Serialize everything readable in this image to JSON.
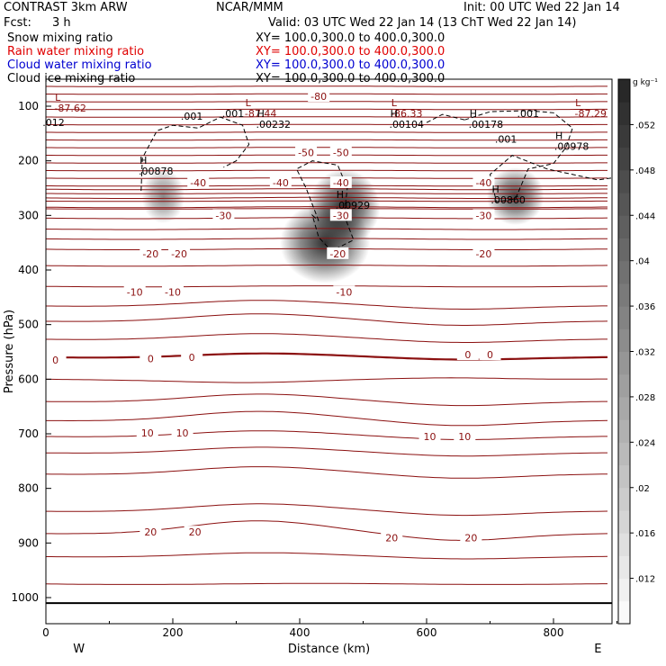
{
  "header": {
    "title": "CONTRAST  3km ARW",
    "center": "NCAR/MMM",
    "init": "Init: 00 UTC Wed 22 Jan 14",
    "fcst_label": "Fcst:",
    "fcst_value": "3 h",
    "valid": "Valid: 03 UTC Wed 22 Jan 14 (13 ChT Wed 22 Jan 14)"
  },
  "fields": [
    {
      "name": "Snow mixing ratio",
      "xy": "XY= 100.0,300.0 to 400.0,300.0",
      "color": "#000000"
    },
    {
      "name": "Rain water mixing ratio",
      "xy": "XY= 100.0,300.0 to 400.0,300.0",
      "color": "#e00000"
    },
    {
      "name": "Cloud water mixing ratio",
      "xy": "XY= 100.0,300.0 to 400.0,300.0",
      "color": "#0000d0"
    },
    {
      "name": "Cloud ice mixing ratio",
      "xy": "XY= 100.0,300.0 to 400.0,300.0",
      "color": "#000000"
    }
  ],
  "chart_data": {
    "type": "contour",
    "xlabel": "Distance (km)",
    "ylabel": "Pressure (hPa)",
    "xlim": [
      0,
      900
    ],
    "ylim": [
      1050,
      60
    ],
    "x_ticks": [
      0,
      200,
      400,
      600,
      800
    ],
    "y_ticks": [
      100,
      200,
      300,
      400,
      500,
      600,
      700,
      800,
      900,
      1000
    ],
    "direction_left": "W",
    "direction_right": "E",
    "colorbar": {
      "unit": "g kg⁻¹",
      "ticks": [
        ".052",
        ".048",
        ".044",
        ".04",
        ".036",
        ".032",
        ".028",
        ".024",
        ".02",
        ".016",
        ".012"
      ],
      "tick_values": [
        0.052,
        0.048,
        0.044,
        0.04,
        0.036,
        0.032,
        0.028,
        0.024,
        0.02,
        0.016,
        0.012
      ],
      "min": 0.008,
      "max": 0.056
    },
    "temperature_labels": [
      {
        "text": "-80",
        "x": 430,
        "p": 82
      },
      {
        "text": "-50",
        "x": 410,
        "p": 185
      },
      {
        "text": "-50",
        "x": 465,
        "p": 185
      },
      {
        "text": "-40",
        "x": 240,
        "p": 240
      },
      {
        "text": "-40",
        "x": 370,
        "p": 240
      },
      {
        "text": "-40",
        "x": 465,
        "p": 240
      },
      {
        "text": "-40",
        "x": 690,
        "p": 240
      },
      {
        "text": "-30",
        "x": 280,
        "p": 300
      },
      {
        "text": "-30",
        "x": 465,
        "p": 300
      },
      {
        "text": "-30",
        "x": 690,
        "p": 300
      },
      {
        "text": "-20",
        "x": 165,
        "p": 370
      },
      {
        "text": "-20",
        "x": 210,
        "p": 370
      },
      {
        "text": "-20",
        "x": 460,
        "p": 370
      },
      {
        "text": "-20",
        "x": 690,
        "p": 370
      },
      {
        "text": "-10",
        "x": 140,
        "p": 440
      },
      {
        "text": "-10",
        "x": 200,
        "p": 440
      },
      {
        "text": "-10",
        "x": 470,
        "p": 440
      },
      {
        "text": "0",
        "x": 15,
        "p": 565
      },
      {
        "text": "0",
        "x": 165,
        "p": 562
      },
      {
        "text": "0",
        "x": 230,
        "p": 560
      },
      {
        "text": "0",
        "x": 665,
        "p": 555
      },
      {
        "text": "0",
        "x": 700,
        "p": 555
      },
      {
        "text": "10",
        "x": 160,
        "p": 698
      },
      {
        "text": "10",
        "x": 215,
        "p": 698
      },
      {
        "text": "10",
        "x": 605,
        "p": 705
      },
      {
        "text": "10",
        "x": 660,
        "p": 705
      },
      {
        "text": "20",
        "x": 165,
        "p": 880
      },
      {
        "text": "20",
        "x": 235,
        "p": 880
      },
      {
        "text": "20",
        "x": 545,
        "p": 890
      },
      {
        "text": "20",
        "x": 670,
        "p": 890
      }
    ],
    "extrema_labels": [
      {
        "type": "L",
        "value": "-87.62",
        "x": 30,
        "p": 100
      },
      {
        "type": "L",
        "value": "-87.44",
        "x": 330,
        "p": 110
      },
      {
        "type": "L",
        "value": "-86.33",
        "x": 560,
        "p": 110
      },
      {
        "type": "L",
        "value": "-87.29",
        "x": 850,
        "p": 110
      },
      {
        "type": "H",
        "value": ".00232",
        "x": 350,
        "p": 130
      },
      {
        "type": "H",
        "value": ".00104",
        "x": 560,
        "p": 130
      },
      {
        "type": "H",
        "value": ".00178",
        "x": 685,
        "p": 130
      },
      {
        "type": "H",
        "value": ".00978",
        "x": 820,
        "p": 170
      },
      {
        "type": "H",
        "value": ".00878",
        "x": 165,
        "p": 215
      },
      {
        "type": "H",
        "value": ".00929",
        "x": 475,
        "p": 278
      },
      {
        "type": "H",
        "value": ".00860",
        "x": 720,
        "p": 268
      }
    ],
    "ice_contour_labels": [
      {
        "text": ".001",
        "x": 230,
        "p": 118
      },
      {
        "text": ".001",
        "x": 295,
        "p": 113
      },
      {
        "text": ".001",
        "x": 760,
        "p": 113
      },
      {
        "text": ".001",
        "x": 725,
        "p": 160
      },
      {
        "text": ".012",
        "x": 12,
        "p": 130
      }
    ],
    "snow_maxima": [
      {
        "x": 185,
        "p": 265,
        "peak": 0.024
      },
      {
        "x": 470,
        "p": 285,
        "peak": 0.052
      },
      {
        "x": 440,
        "p": 350,
        "peak": 0.04
      },
      {
        "x": 740,
        "p": 265,
        "peak": 0.036
      }
    ]
  }
}
